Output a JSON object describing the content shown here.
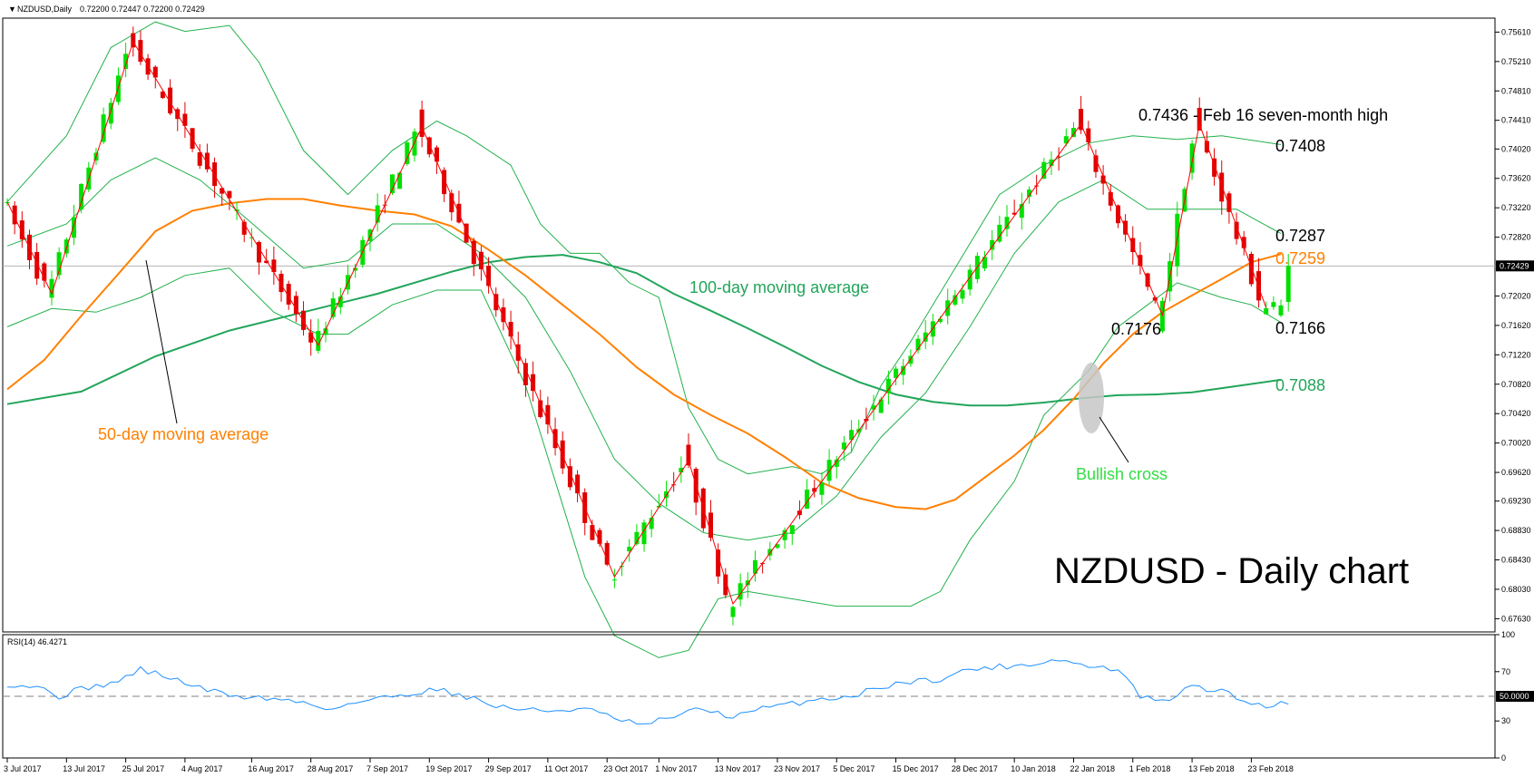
{
  "chart_data": {
    "type": "candlestick",
    "header": {
      "symbol_label": "NZDUSD,Daily",
      "ohlc_label": "0.72200 0.72447 0.72200 0.72429"
    },
    "price_axis": {
      "ylim": [
        0.6745,
        0.758
      ],
      "ticks": [
        "0.75610",
        "0.75210",
        "0.74810",
        "0.74410",
        "0.74020",
        "0.73620",
        "0.73220",
        "0.72820",
        "0.72020",
        "0.71620",
        "0.71220",
        "0.70820",
        "0.70420",
        "0.70020",
        "0.69620",
        "0.69230",
        "0.68830",
        "0.68430",
        "0.68030",
        "0.67630"
      ],
      "current_price_label": "0.72429",
      "current_price": 0.72429
    },
    "time_axis": {
      "labels": [
        {
          "label": "3 Jul 2017",
          "bar": 0
        },
        {
          "label": "13 Jul 2017",
          "bar": 8
        },
        {
          "label": "25 Jul 2017",
          "bar": 16
        },
        {
          "label": "4 Aug 2017",
          "bar": 24
        },
        {
          "label": "16 Aug 2017",
          "bar": 33
        },
        {
          "label": "28 Aug 2017",
          "bar": 41
        },
        {
          "label": "7 Sep 2017",
          "bar": 49
        },
        {
          "label": "19 Sep 2017",
          "bar": 57
        },
        {
          "label": "29 Sep 2017",
          "bar": 65
        },
        {
          "label": "11 Oct 2017",
          "bar": 73
        },
        {
          "label": "23 Oct 2017",
          "bar": 81
        },
        {
          "label": "1 Nov 2017",
          "bar": 88
        },
        {
          "label": "13 Nov 2017",
          "bar": 96
        },
        {
          "label": "23 Nov 2017",
          "bar": 104
        },
        {
          "label": "5 Dec 2017",
          "bar": 112
        },
        {
          "label": "15 Dec 2017",
          "bar": 120
        },
        {
          "label": "28 Dec 2017",
          "bar": 128
        },
        {
          "label": "10 Jan 2018",
          "bar": 136
        },
        {
          "label": "22 Jan 2018",
          "bar": 144
        },
        {
          "label": "1 Feb 2018",
          "bar": 152
        },
        {
          "label": "13 Feb 2018",
          "bar": 160
        },
        {
          "label": "23 Feb 2018",
          "bar": 168
        }
      ]
    },
    "zigzag_anchors": [
      {
        "bar": 0,
        "value": 0.733
      },
      {
        "bar": 6,
        "value": 0.7205
      },
      {
        "bar": 17,
        "value": 0.7548
      },
      {
        "bar": 42,
        "value": 0.7135
      },
      {
        "bar": 56,
        "value": 0.7432
      },
      {
        "bar": 82,
        "value": 0.682
      },
      {
        "bar": 92,
        "value": 0.6978
      },
      {
        "bar": 98,
        "value": 0.6783
      },
      {
        "bar": 145,
        "value": 0.7436
      },
      {
        "bar": 156,
        "value": 0.7176
      },
      {
        "bar": 161,
        "value": 0.7436
      },
      {
        "bar": 170,
        "value": 0.7186
      }
    ],
    "ma50_anchors": [
      {
        "bar": 0,
        "value": 0.7075
      },
      {
        "bar": 5,
        "value": 0.7115
      },
      {
        "bar": 10,
        "value": 0.7175
      },
      {
        "bar": 15,
        "value": 0.7232
      },
      {
        "bar": 20,
        "value": 0.729
      },
      {
        "bar": 25,
        "value": 0.7318
      },
      {
        "bar": 30,
        "value": 0.7328
      },
      {
        "bar": 35,
        "value": 0.7334
      },
      {
        "bar": 40,
        "value": 0.7334
      },
      {
        "bar": 45,
        "value": 0.7325
      },
      {
        "bar": 50,
        "value": 0.7318
      },
      {
        "bar": 55,
        "value": 0.7313
      },
      {
        "bar": 60,
        "value": 0.7297
      },
      {
        "bar": 65,
        "value": 0.7265
      },
      {
        "bar": 70,
        "value": 0.723
      },
      {
        "bar": 75,
        "value": 0.719
      },
      {
        "bar": 80,
        "value": 0.715
      },
      {
        "bar": 85,
        "value": 0.7105
      },
      {
        "bar": 90,
        "value": 0.7068
      },
      {
        "bar": 95,
        "value": 0.704
      },
      {
        "bar": 100,
        "value": 0.7015
      },
      {
        "bar": 105,
        "value": 0.6983
      },
      {
        "bar": 110,
        "value": 0.6948
      },
      {
        "bar": 115,
        "value": 0.6927
      },
      {
        "bar": 120,
        "value": 0.6915
      },
      {
        "bar": 124,
        "value": 0.6912
      },
      {
        "bar": 128,
        "value": 0.6925
      },
      {
        "bar": 132,
        "value": 0.6955
      },
      {
        "bar": 136,
        "value": 0.6985
      },
      {
        "bar": 140,
        "value": 0.702
      },
      {
        "bar": 144,
        "value": 0.7062
      },
      {
        "bar": 148,
        "value": 0.711
      },
      {
        "bar": 152,
        "value": 0.715
      },
      {
        "bar": 156,
        "value": 0.718
      },
      {
        "bar": 160,
        "value": 0.7203
      },
      {
        "bar": 164,
        "value": 0.7225
      },
      {
        "bar": 168,
        "value": 0.7248
      },
      {
        "bar": 172,
        "value": 0.7259
      }
    ],
    "ma100_anchors": [
      {
        "bar": 0,
        "value": 0.7055
      },
      {
        "bar": 10,
        "value": 0.7072
      },
      {
        "bar": 20,
        "value": 0.712
      },
      {
        "bar": 30,
        "value": 0.7155
      },
      {
        "bar": 40,
        "value": 0.718
      },
      {
        "bar": 50,
        "value": 0.7205
      },
      {
        "bar": 60,
        "value": 0.7235
      },
      {
        "bar": 65,
        "value": 0.7248
      },
      {
        "bar": 70,
        "value": 0.7255
      },
      {
        "bar": 75,
        "value": 0.7258
      },
      {
        "bar": 80,
        "value": 0.7248
      },
      {
        "bar": 85,
        "value": 0.7233
      },
      {
        "bar": 90,
        "value": 0.7205
      },
      {
        "bar": 95,
        "value": 0.7182
      },
      {
        "bar": 100,
        "value": 0.7158
      },
      {
        "bar": 105,
        "value": 0.7133
      },
      {
        "bar": 110,
        "value": 0.7107
      },
      {
        "bar": 115,
        "value": 0.7085
      },
      {
        "bar": 120,
        "value": 0.7068
      },
      {
        "bar": 125,
        "value": 0.7058
      },
      {
        "bar": 130,
        "value": 0.7053
      },
      {
        "bar": 135,
        "value": 0.7053
      },
      {
        "bar": 140,
        "value": 0.7057
      },
      {
        "bar": 145,
        "value": 0.7063
      },
      {
        "bar": 150,
        "value": 0.7067
      },
      {
        "bar": 155,
        "value": 0.7068
      },
      {
        "bar": 160,
        "value": 0.7071
      },
      {
        "bar": 165,
        "value": 0.7078
      },
      {
        "bar": 172,
        "value": 0.7088
      }
    ],
    "bb_mid_anchors": [
      {
        "bar": 0,
        "value": 0.727
      },
      {
        "bar": 8,
        "value": 0.73
      },
      {
        "bar": 14,
        "value": 0.736
      },
      {
        "bar": 20,
        "value": 0.739
      },
      {
        "bar": 26,
        "value": 0.736
      },
      {
        "bar": 32,
        "value": 0.731
      },
      {
        "bar": 40,
        "value": 0.724
      },
      {
        "bar": 46,
        "value": 0.725
      },
      {
        "bar": 52,
        "value": 0.73
      },
      {
        "bar": 58,
        "value": 0.73
      },
      {
        "bar": 64,
        "value": 0.726
      },
      {
        "bar": 70,
        "value": 0.72
      },
      {
        "bar": 76,
        "value": 0.71
      },
      {
        "bar": 82,
        "value": 0.698
      },
      {
        "bar": 88,
        "value": 0.692
      },
      {
        "bar": 94,
        "value": 0.688
      },
      {
        "bar": 100,
        "value": 0.687
      },
      {
        "bar": 106,
        "value": 0.688
      },
      {
        "bar": 112,
        "value": 0.693
      },
      {
        "bar": 118,
        "value": 0.701
      },
      {
        "bar": 124,
        "value": 0.707
      },
      {
        "bar": 130,
        "value": 0.716
      },
      {
        "bar": 136,
        "value": 0.726
      },
      {
        "bar": 142,
        "value": 0.733
      },
      {
        "bar": 148,
        "value": 0.736
      },
      {
        "bar": 154,
        "value": 0.732
      },
      {
        "bar": 160,
        "value": 0.732
      },
      {
        "bar": 166,
        "value": 0.732
      },
      {
        "bar": 172,
        "value": 0.7287
      }
    ],
    "bb_upper_anchors": [
      {
        "bar": 0,
        "value": 0.733
      },
      {
        "bar": 8,
        "value": 0.742
      },
      {
        "bar": 14,
        "value": 0.754
      },
      {
        "bar": 20,
        "value": 0.7575
      },
      {
        "bar": 24,
        "value": 0.7562
      },
      {
        "bar": 30,
        "value": 0.757
      },
      {
        "bar": 34,
        "value": 0.752
      },
      {
        "bar": 40,
        "value": 0.74
      },
      {
        "bar": 46,
        "value": 0.734
      },
      {
        "bar": 52,
        "value": 0.74
      },
      {
        "bar": 58,
        "value": 0.744
      },
      {
        "bar": 62,
        "value": 0.742
      },
      {
        "bar": 68,
        "value": 0.738
      },
      {
        "bar": 72,
        "value": 0.73
      },
      {
        "bar": 76,
        "value": 0.726
      },
      {
        "bar": 80,
        "value": 0.726
      },
      {
        "bar": 84,
        "value": 0.722
      },
      {
        "bar": 88,
        "value": 0.72
      },
      {
        "bar": 92,
        "value": 0.705
      },
      {
        "bar": 96,
        "value": 0.698
      },
      {
        "bar": 100,
        "value": 0.696
      },
      {
        "bar": 106,
        "value": 0.697
      },
      {
        "bar": 110,
        "value": 0.696
      },
      {
        "bar": 114,
        "value": 0.699
      },
      {
        "bar": 118,
        "value": 0.708
      },
      {
        "bar": 122,
        "value": 0.714
      },
      {
        "bar": 128,
        "value": 0.724
      },
      {
        "bar": 134,
        "value": 0.734
      },
      {
        "bar": 140,
        "value": 0.738
      },
      {
        "bar": 146,
        "value": 0.741
      },
      {
        "bar": 152,
        "value": 0.742
      },
      {
        "bar": 158,
        "value": 0.7415
      },
      {
        "bar": 164,
        "value": 0.742
      },
      {
        "bar": 172,
        "value": 0.7408
      }
    ],
    "bb_lower_anchors": [
      {
        "bar": 0,
        "value": 0.716
      },
      {
        "bar": 6,
        "value": 0.7185
      },
      {
        "bar": 12,
        "value": 0.718
      },
      {
        "bar": 18,
        "value": 0.72
      },
      {
        "bar": 24,
        "value": 0.723
      },
      {
        "bar": 30,
        "value": 0.724
      },
      {
        "bar": 36,
        "value": 0.718
      },
      {
        "bar": 42,
        "value": 0.715
      },
      {
        "bar": 46,
        "value": 0.715
      },
      {
        "bar": 52,
        "value": 0.719
      },
      {
        "bar": 58,
        "value": 0.721
      },
      {
        "bar": 64,
        "value": 0.721
      },
      {
        "bar": 70,
        "value": 0.708
      },
      {
        "bar": 74,
        "value": 0.695
      },
      {
        "bar": 78,
        "value": 0.682
      },
      {
        "bar": 82,
        "value": 0.674
      },
      {
        "bar": 88,
        "value": 0.671
      },
      {
        "bar": 92,
        "value": 0.672
      },
      {
        "bar": 96,
        "value": 0.679
      },
      {
        "bar": 100,
        "value": 0.68
      },
      {
        "bar": 106,
        "value": 0.679
      },
      {
        "bar": 112,
        "value": 0.678
      },
      {
        "bar": 118,
        "value": 0.678
      },
      {
        "bar": 122,
        "value": 0.678
      },
      {
        "bar": 126,
        "value": 0.68
      },
      {
        "bar": 130,
        "value": 0.687
      },
      {
        "bar": 136,
        "value": 0.695
      },
      {
        "bar": 140,
        "value": 0.704
      },
      {
        "bar": 146,
        "value": 0.71
      },
      {
        "bar": 150,
        "value": 0.716
      },
      {
        "bar": 154,
        "value": 0.719
      },
      {
        "bar": 158,
        "value": 0.722
      },
      {
        "bar": 164,
        "value": 0.72
      },
      {
        "bar": 168,
        "value": 0.719
      },
      {
        "bar": 172,
        "value": 0.7166
      }
    ],
    "annotations": {
      "high_label": "0.7436 - Feb 16 seven-month high",
      "bb_upper_label": "0.7408",
      "bb_mid_label": "0.7287",
      "ma50_value_label": "0.7259",
      "low_label": "0.7176",
      "bb_lower_label": "0.7166",
      "ma100_value_label": "0.7088",
      "ma100_label": "100-day moving average",
      "ma50_label": "50-day moving average",
      "cross_label": "Bullish cross",
      "chart_title": "NZDUSD - Daily chart"
    },
    "rsi": {
      "header_label": "RSI(14) 46.4271",
      "ylim": [
        0,
        100
      ],
      "ticks": [
        "100",
        "70",
        "50.0000",
        "30",
        "0"
      ],
      "level": 50,
      "anchors": [
        {
          "bar": 0,
          "value": 60
        },
        {
          "bar": 4,
          "value": 58
        },
        {
          "bar": 7,
          "value": 50
        },
        {
          "bar": 10,
          "value": 56
        },
        {
          "bar": 15,
          "value": 62
        },
        {
          "bar": 18,
          "value": 72
        },
        {
          "bar": 22,
          "value": 65
        },
        {
          "bar": 27,
          "value": 55
        },
        {
          "bar": 31,
          "value": 50
        },
        {
          "bar": 36,
          "value": 48
        },
        {
          "bar": 40,
          "value": 45
        },
        {
          "bar": 43,
          "value": 40
        },
        {
          "bar": 48,
          "value": 46
        },
        {
          "bar": 54,
          "value": 52
        },
        {
          "bar": 58,
          "value": 56
        },
        {
          "bar": 62,
          "value": 50
        },
        {
          "bar": 66,
          "value": 42
        },
        {
          "bar": 72,
          "value": 38
        },
        {
          "bar": 78,
          "value": 40
        },
        {
          "bar": 82,
          "value": 32
        },
        {
          "bar": 86,
          "value": 26
        },
        {
          "bar": 90,
          "value": 34
        },
        {
          "bar": 94,
          "value": 40
        },
        {
          "bar": 98,
          "value": 33
        },
        {
          "bar": 102,
          "value": 40
        },
        {
          "bar": 106,
          "value": 44
        },
        {
          "bar": 110,
          "value": 48
        },
        {
          "bar": 114,
          "value": 50
        },
        {
          "bar": 118,
          "value": 58
        },
        {
          "bar": 122,
          "value": 62
        },
        {
          "bar": 126,
          "value": 64
        },
        {
          "bar": 130,
          "value": 72
        },
        {
          "bar": 134,
          "value": 74
        },
        {
          "bar": 138,
          "value": 76
        },
        {
          "bar": 142,
          "value": 80
        },
        {
          "bar": 146,
          "value": 74
        },
        {
          "bar": 150,
          "value": 72
        },
        {
          "bar": 153,
          "value": 50
        },
        {
          "bar": 156,
          "value": 45
        },
        {
          "bar": 160,
          "value": 58
        },
        {
          "bar": 164,
          "value": 54
        },
        {
          "bar": 168,
          "value": 44
        },
        {
          "bar": 171,
          "value": 42
        },
        {
          "bar": 173,
          "value": 46
        }
      ]
    }
  }
}
